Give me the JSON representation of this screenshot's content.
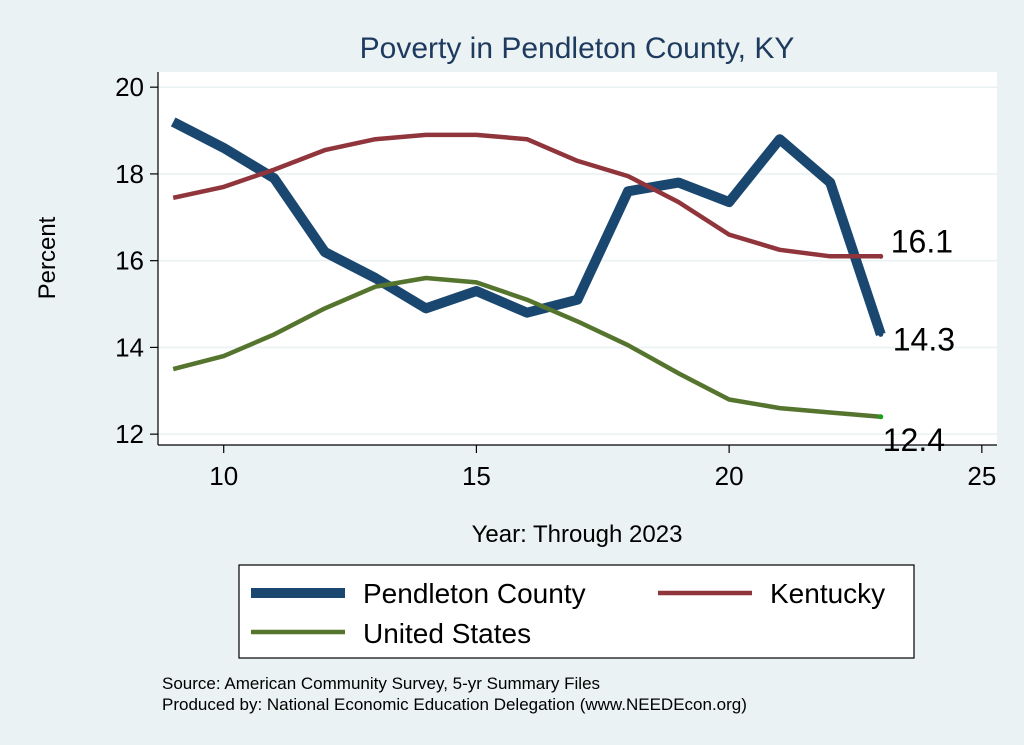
{
  "chart_data": {
    "type": "line",
    "title": "Poverty in Pendleton County, KY",
    "xlabel": "Year: Through 2023",
    "ylabel": "Percent",
    "xlim": [
      8.7,
      25.3
    ],
    "ylim": [
      11.75,
      20.35
    ],
    "xticks": [
      10,
      15,
      20,
      25
    ],
    "yticks": [
      12,
      14,
      16,
      18,
      20
    ],
    "grid": true,
    "legend": "bottom",
    "series": [
      {
        "name": "Pendleton County",
        "color": "#1a476f",
        "x": [
          9,
          10,
          11,
          12,
          13,
          14,
          15,
          16,
          17,
          18,
          19,
          20,
          21,
          22,
          23
        ],
        "values": [
          19.2,
          18.6,
          17.9,
          16.2,
          15.6,
          14.9,
          15.3,
          14.8,
          15.1,
          17.6,
          17.8,
          17.35,
          18.8,
          17.8,
          14.3
        ],
        "end_label": "14.3"
      },
      {
        "name": "Kentucky",
        "color": "#90353b",
        "x": [
          9,
          10,
          11,
          12,
          13,
          14,
          15,
          16,
          17,
          18,
          19,
          20,
          21,
          22,
          23
        ],
        "values": [
          17.45,
          17.7,
          18.1,
          18.55,
          18.8,
          18.9,
          18.9,
          18.8,
          18.3,
          17.95,
          17.35,
          16.6,
          16.25,
          16.1,
          16.1
        ],
        "end_label": "16.1"
      },
      {
        "name": "United States",
        "color": "#55752f",
        "x": [
          9,
          10,
          11,
          12,
          13,
          14,
          15,
          16,
          17,
          18,
          19,
          20,
          21,
          22,
          23
        ],
        "values": [
          13.5,
          13.8,
          14.3,
          14.9,
          15.4,
          15.6,
          15.5,
          15.1,
          14.6,
          14.05,
          13.4,
          12.8,
          12.6,
          12.5,
          12.4
        ],
        "end_label": "12.4"
      }
    ],
    "notes": [
      "Source: American Community Survey, 5-yr Summary Files",
      "Produced by: National Economic Education Delegation (www.NEEDEcon.org)"
    ]
  }
}
